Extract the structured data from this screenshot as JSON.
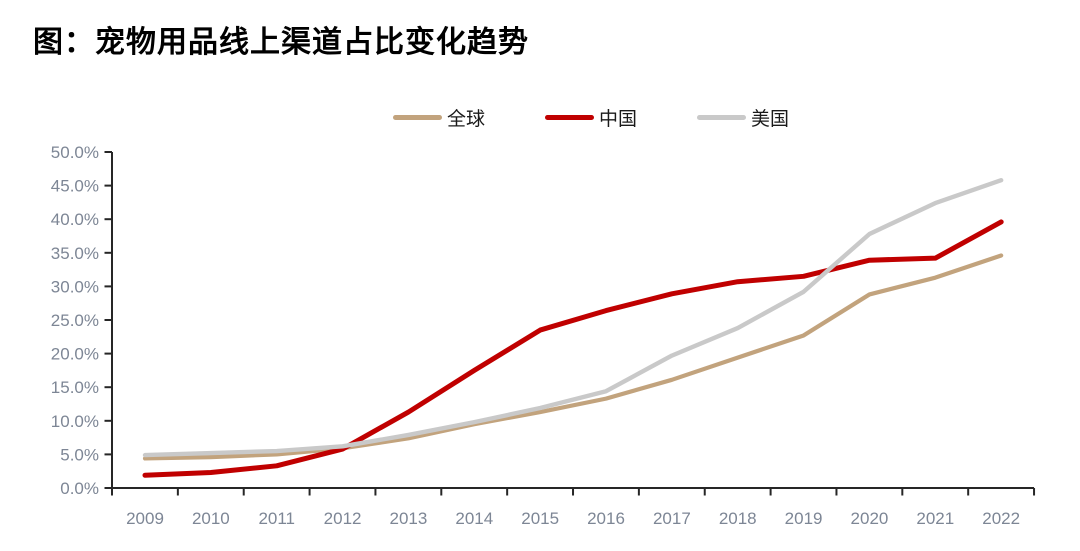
{
  "title": "图：宠物用品线上渠道占比变化趋势",
  "chart_data": {
    "type": "line",
    "title": "图：宠物用品线上渠道占比变化趋势",
    "x": [
      "2009",
      "2010",
      "2011",
      "2012",
      "2013",
      "2014",
      "2015",
      "2016",
      "2017",
      "2018",
      "2019",
      "2020",
      "2021",
      "2022"
    ],
    "xlabel": "",
    "ylabel": "",
    "ylim": [
      0,
      50
    ],
    "ystep": 5,
    "ytick_suffix": "%",
    "grid": false,
    "legend_position": "top-center",
    "series": [
      {
        "name": "全球",
        "color": "#c2a37d",
        "values": [
          4.4,
          4.6,
          5.0,
          5.9,
          7.4,
          9.5,
          11.3,
          13.3,
          16.1,
          19.4,
          22.7,
          28.8,
          31.3,
          34.6
        ]
      },
      {
        "name": "中国",
        "color": "#c00000",
        "values": [
          1.9,
          2.3,
          3.3,
          5.8,
          11.3,
          17.5,
          23.5,
          26.4,
          28.9,
          30.7,
          31.5,
          33.9,
          34.2,
          39.6
        ]
      },
      {
        "name": "美国",
        "color": "#c9c9c9",
        "values": [
          4.9,
          5.2,
          5.5,
          6.2,
          7.9,
          9.8,
          11.9,
          14.4,
          19.7,
          23.8,
          29.2,
          37.8,
          42.4,
          45.8
        ]
      }
    ],
    "axis_color": "#262626",
    "tick_label_color": "#7d8695"
  }
}
